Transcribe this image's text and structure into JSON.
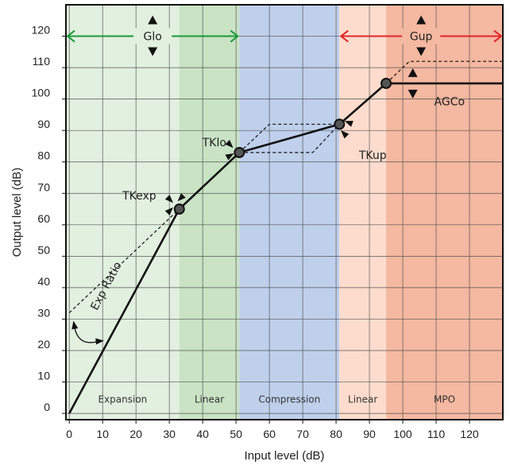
{
  "chart_data": {
    "type": "line",
    "xlabel": "Input level (dB)",
    "ylabel": "Output level (dB)",
    "xlim": [
      -1,
      130
    ],
    "ylim": [
      -2,
      130
    ],
    "x_ticks": [
      0,
      10,
      20,
      30,
      40,
      50,
      60,
      70,
      80,
      90,
      100,
      110,
      120
    ],
    "y_ticks": [
      0,
      10,
      20,
      30,
      40,
      50,
      60,
      70,
      80,
      90,
      100,
      110,
      120
    ],
    "grid": true,
    "regions": [
      {
        "label": "Expansion",
        "x0": -1,
        "x1": 33,
        "color": "#e2f0df"
      },
      {
        "label": "Linear",
        "x0": 33,
        "x1": 51,
        "color": "#c9e3c4"
      },
      {
        "label": "Compression",
        "x0": 51,
        "x1": 81,
        "color": "#bfd0ec"
      },
      {
        "label": "Linear",
        "x0": 81,
        "x1": 95,
        "color": "#fddccd"
      },
      {
        "label": "MPO",
        "x0": 95,
        "x1": 130,
        "color": "#f5b8a0"
      }
    ],
    "series": [
      {
        "values": [
          [
            0,
            0
          ],
          [
            33,
            65
          ],
          [
            51,
            83
          ],
          [
            81,
            92
          ],
          [
            95,
            105
          ],
          [
            130,
            105
          ]
        ],
        "style": "solid"
      },
      {
        "values": [
          [
            0,
            32
          ],
          [
            33,
            65
          ]
        ],
        "style": "dashed"
      },
      {
        "values": [
          [
            51,
            83
          ],
          [
            60,
            92
          ],
          [
            81,
            92
          ]
        ],
        "style": "dashed"
      },
      {
        "values": [
          [
            51,
            83
          ],
          [
            73,
            83
          ],
          [
            81,
            92
          ]
        ],
        "style": "dashed"
      },
      {
        "values": [
          [
            95,
            105
          ],
          [
            102,
            112
          ],
          [
            130,
            112
          ]
        ],
        "style": "dashed"
      }
    ],
    "knee_points": [
      [
        33,
        65
      ],
      [
        51,
        83
      ],
      [
        81,
        92
      ],
      [
        95,
        105
      ]
    ],
    "annotations": [
      {
        "text": "TKexp",
        "x": 21,
        "y": 68
      },
      {
        "text": "TKlo",
        "x": 43.5,
        "y": 85
      },
      {
        "text": "TKup",
        "x": 91,
        "y": 81
      },
      {
        "text": "AGCo",
        "x": 114,
        "y": 98
      },
      {
        "text": "Exp Ratio",
        "x": 12,
        "y": 40
      }
    ],
    "ranges": [
      {
        "label": "Glo",
        "x0": -1,
        "x1": 51,
        "y": 120,
        "color": "#1a9a3a"
      },
      {
        "label": "Gup",
        "x0": 81,
        "x1": 130,
        "y": 120,
        "color": "#e0262b"
      }
    ]
  }
}
